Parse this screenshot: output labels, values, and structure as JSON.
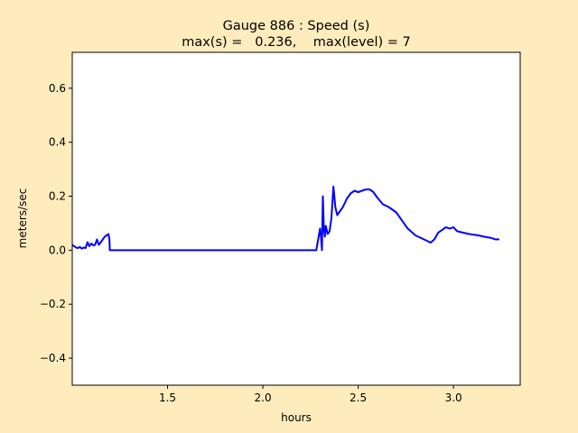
{
  "colors": {
    "figure_background": "#ffecbd",
    "axes_background": "#ffffff",
    "line": "#0000ff"
  },
  "chart_data": {
    "type": "line",
    "title_line1": "Gauge 886 : Speed (s)",
    "title_line2": "max(s) =   0.236,    max(level) = 7",
    "xlabel": "hours",
    "ylabel": "meters/sec",
    "xlim": [
      1.0,
      3.35
    ],
    "ylim": [
      -0.5,
      0.733
    ],
    "xticks": [
      1.5,
      2.0,
      2.5,
      3.0
    ],
    "xtick_labels": [
      "1.5",
      "2.0",
      "2.5",
      "3.0"
    ],
    "yticks": [
      -0.4,
      -0.2,
      0.0,
      0.2,
      0.4,
      0.6
    ],
    "ytick_labels": [
      "−0.4",
      "−0.2",
      "0.0",
      "0.2",
      "0.4",
      "0.6"
    ],
    "grid": false,
    "series": [
      {
        "color": "#0000ff",
        "x": [
          1.0,
          1.01,
          1.02,
          1.03,
          1.04,
          1.05,
          1.06,
          1.07,
          1.08,
          1.09,
          1.1,
          1.11,
          1.12,
          1.13,
          1.14,
          1.15,
          1.16,
          1.17,
          1.18,
          1.19,
          1.195,
          1.197,
          1.2,
          1.21,
          1.3,
          1.5,
          1.8,
          2.0,
          2.2,
          2.28,
          2.29,
          2.3,
          2.305,
          2.31,
          2.315,
          2.32,
          2.325,
          2.33,
          2.34,
          2.35,
          2.36,
          2.37,
          2.375,
          2.38,
          2.39,
          2.4,
          2.42,
          2.44,
          2.46,
          2.48,
          2.5,
          2.52,
          2.54,
          2.56,
          2.58,
          2.6,
          2.63,
          2.66,
          2.7,
          2.73,
          2.76,
          2.8,
          2.83,
          2.86,
          2.88,
          2.9,
          2.92,
          2.94,
          2.96,
          2.98,
          3.0,
          3.02,
          3.05,
          3.08,
          3.1,
          3.13,
          3.16,
          3.2,
          3.22,
          3.24
        ],
        "y": [
          0.02,
          0.015,
          0.01,
          0.008,
          0.012,
          0.006,
          0.01,
          0.008,
          0.03,
          0.015,
          0.025,
          0.018,
          0.02,
          0.04,
          0.02,
          0.03,
          0.04,
          0.05,
          0.055,
          0.06,
          0.04,
          0.0,
          0.0,
          0.0,
          0.0,
          0.0,
          0.0,
          0.0,
          0.0,
          0.0,
          0.04,
          0.08,
          0.05,
          0.0,
          0.2,
          0.08,
          0.05,
          0.09,
          0.06,
          0.07,
          0.12,
          0.236,
          0.2,
          0.16,
          0.13,
          0.14,
          0.16,
          0.19,
          0.21,
          0.22,
          0.215,
          0.22,
          0.225,
          0.225,
          0.215,
          0.195,
          0.17,
          0.16,
          0.14,
          0.11,
          0.08,
          0.055,
          0.045,
          0.035,
          0.028,
          0.04,
          0.065,
          0.075,
          0.085,
          0.08,
          0.085,
          0.07,
          0.065,
          0.06,
          0.058,
          0.055,
          0.05,
          0.045,
          0.04,
          0.04
        ]
      }
    ]
  }
}
